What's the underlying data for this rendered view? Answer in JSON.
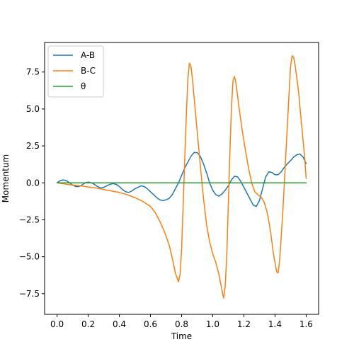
{
  "chart_data": {
    "type": "line",
    "xlabel": "Time",
    "ylabel": "Momentum",
    "xlim": [
      -0.08,
      1.68
    ],
    "ylim": [
      -8.9,
      9.5
    ],
    "xticks": [
      0.0,
      0.2,
      0.4,
      0.6,
      0.8,
      1.0,
      1.2,
      1.4,
      1.6
    ],
    "xtick_labels": [
      "0.0",
      "0.2",
      "0.4",
      "0.6",
      "0.8",
      "1.0",
      "1.2",
      "1.4",
      "1.6"
    ],
    "yticks": [
      -7.5,
      -5.0,
      -2.5,
      0.0,
      2.5,
      5.0,
      7.5
    ],
    "ytick_labels": [
      "−7.5",
      "−5.0",
      "−2.5",
      "0.0",
      "2.5",
      "5.0",
      "7.5"
    ],
    "grid": false,
    "legend": "top-left",
    "series": [
      {
        "name": "A-B",
        "color": "#1f77b4",
        "points": [
          [
            0.0,
            0.0
          ],
          [
            0.02,
            0.15
          ],
          [
            0.04,
            0.2
          ],
          [
            0.06,
            0.15
          ],
          [
            0.08,
            0.0
          ],
          [
            0.1,
            -0.15
          ],
          [
            0.12,
            -0.25
          ],
          [
            0.14,
            -0.25
          ],
          [
            0.16,
            -0.15
          ],
          [
            0.18,
            0.0
          ],
          [
            0.2,
            0.05
          ],
          [
            0.22,
            0.0
          ],
          [
            0.24,
            -0.1
          ],
          [
            0.26,
            -0.25
          ],
          [
            0.28,
            -0.35
          ],
          [
            0.3,
            -0.3
          ],
          [
            0.32,
            -0.2
          ],
          [
            0.34,
            -0.1
          ],
          [
            0.36,
            -0.05
          ],
          [
            0.38,
            -0.1
          ],
          [
            0.4,
            -0.25
          ],
          [
            0.42,
            -0.45
          ],
          [
            0.44,
            -0.6
          ],
          [
            0.46,
            -0.65
          ],
          [
            0.48,
            -0.55
          ],
          [
            0.5,
            -0.4
          ],
          [
            0.52,
            -0.3
          ],
          [
            0.54,
            -0.2
          ],
          [
            0.56,
            -0.25
          ],
          [
            0.58,
            -0.4
          ],
          [
            0.6,
            -0.6
          ],
          [
            0.62,
            -0.8
          ],
          [
            0.64,
            -1.0
          ],
          [
            0.66,
            -1.15
          ],
          [
            0.68,
            -1.2
          ],
          [
            0.7,
            -1.15
          ],
          [
            0.72,
            -1.05
          ],
          [
            0.74,
            -0.8
          ],
          [
            0.76,
            -0.4
          ],
          [
            0.78,
            0.0
          ],
          [
            0.8,
            0.5
          ],
          [
            0.82,
            1.0
          ],
          [
            0.84,
            1.4
          ],
          [
            0.86,
            1.8
          ],
          [
            0.88,
            2.05
          ],
          [
            0.9,
            2.05
          ],
          [
            0.92,
            1.8
          ],
          [
            0.94,
            1.3
          ],
          [
            0.96,
            0.7
          ],
          [
            0.98,
            0.0
          ],
          [
            1.0,
            -0.5
          ],
          [
            1.02,
            -0.8
          ],
          [
            1.04,
            -0.9
          ],
          [
            1.06,
            -0.75
          ],
          [
            1.08,
            -0.5
          ],
          [
            1.1,
            -0.2
          ],
          [
            1.12,
            0.2
          ],
          [
            1.14,
            0.45
          ],
          [
            1.16,
            0.4
          ],
          [
            1.18,
            0.1
          ],
          [
            1.2,
            -0.3
          ],
          [
            1.22,
            -0.7
          ],
          [
            1.24,
            -1.1
          ],
          [
            1.26,
            -1.5
          ],
          [
            1.28,
            -1.6
          ],
          [
            1.3,
            -1.2
          ],
          [
            1.32,
            -0.4
          ],
          [
            1.34,
            0.4
          ],
          [
            1.36,
            0.75
          ],
          [
            1.38,
            0.7
          ],
          [
            1.4,
            0.55
          ],
          [
            1.42,
            0.55
          ],
          [
            1.44,
            0.75
          ],
          [
            1.46,
            1.05
          ],
          [
            1.48,
            1.3
          ],
          [
            1.5,
            1.5
          ],
          [
            1.52,
            1.75
          ],
          [
            1.54,
            1.9
          ],
          [
            1.56,
            1.95
          ],
          [
            1.58,
            1.75
          ],
          [
            1.6,
            1.3
          ]
        ]
      },
      {
        "name": "B-C",
        "color": "#ff7f0e",
        "points": [
          [
            0.0,
            0.0
          ],
          [
            0.05,
            -0.08
          ],
          [
            0.1,
            -0.15
          ],
          [
            0.15,
            -0.2
          ],
          [
            0.2,
            -0.28
          ],
          [
            0.25,
            -0.35
          ],
          [
            0.3,
            -0.45
          ],
          [
            0.35,
            -0.55
          ],
          [
            0.4,
            -0.65
          ],
          [
            0.45,
            -0.8
          ],
          [
            0.5,
            -1.0
          ],
          [
            0.55,
            -1.25
          ],
          [
            0.6,
            -1.6
          ],
          [
            0.63,
            -2.0
          ],
          [
            0.66,
            -2.6
          ],
          [
            0.69,
            -3.3
          ],
          [
            0.72,
            -4.2
          ],
          [
            0.74,
            -5.1
          ],
          [
            0.76,
            -6.1
          ],
          [
            0.78,
            -6.7
          ],
          [
            0.79,
            -6.2
          ],
          [
            0.8,
            -4.5
          ],
          [
            0.81,
            -1.5
          ],
          [
            0.82,
            1.5
          ],
          [
            0.83,
            4.5
          ],
          [
            0.84,
            7.0
          ],
          [
            0.85,
            8.1
          ],
          [
            0.86,
            7.9
          ],
          [
            0.87,
            7.0
          ],
          [
            0.88,
            5.8
          ],
          [
            0.9,
            3.5
          ],
          [
            0.92,
            1.2
          ],
          [
            0.94,
            -1.0
          ],
          [
            0.96,
            -2.8
          ],
          [
            0.98,
            -4.0
          ],
          [
            1.0,
            -4.8
          ],
          [
            1.02,
            -5.4
          ],
          [
            1.04,
            -6.2
          ],
          [
            1.06,
            -7.3
          ],
          [
            1.07,
            -7.8
          ],
          [
            1.08,
            -7.0
          ],
          [
            1.09,
            -5.0
          ],
          [
            1.1,
            -1.5
          ],
          [
            1.11,
            2.0
          ],
          [
            1.12,
            5.0
          ],
          [
            1.13,
            6.9
          ],
          [
            1.14,
            7.2
          ],
          [
            1.15,
            6.7
          ],
          [
            1.17,
            5.0
          ],
          [
            1.19,
            3.5
          ],
          [
            1.21,
            2.2
          ],
          [
            1.23,
            1.0
          ],
          [
            1.25,
            0.0
          ],
          [
            1.27,
            -0.6
          ],
          [
            1.29,
            -0.8
          ],
          [
            1.31,
            -0.95
          ],
          [
            1.33,
            -1.3
          ],
          [
            1.35,
            -2.0
          ],
          [
            1.37,
            -3.2
          ],
          [
            1.39,
            -4.8
          ],
          [
            1.41,
            -6.0
          ],
          [
            1.42,
            -6.1
          ],
          [
            1.43,
            -5.2
          ],
          [
            1.45,
            -2.0
          ],
          [
            1.47,
            2.0
          ],
          [
            1.49,
            6.0
          ],
          [
            1.5,
            7.9
          ],
          [
            1.51,
            8.6
          ],
          [
            1.52,
            8.5
          ],
          [
            1.53,
            7.9
          ],
          [
            1.55,
            6.3
          ],
          [
            1.57,
            4.0
          ],
          [
            1.59,
            1.8
          ],
          [
            1.6,
            0.3
          ]
        ]
      },
      {
        "name": "θ",
        "color": "#2ca02c",
        "points": [
          [
            0.0,
            0.0
          ],
          [
            1.6,
            0.0
          ]
        ]
      }
    ]
  }
}
